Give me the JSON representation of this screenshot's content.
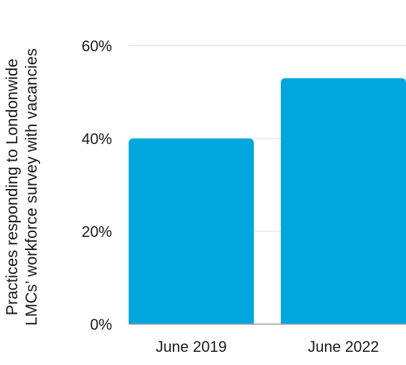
{
  "chart_data": {
    "type": "bar",
    "categories": [
      "June 2019",
      "June 2022"
    ],
    "values": [
      40,
      53
    ],
    "ylabel_lines": [
      "Practices responding to Londonwide",
      "LMCs’ workforce survey with vacancies"
    ],
    "yticks": [
      "0%",
      "20%",
      "40%",
      "60%"
    ],
    "ylim": [
      0,
      60
    ],
    "grid": true,
    "bar_color": "#00A6DE",
    "grid_color": "#d9d9d9"
  }
}
